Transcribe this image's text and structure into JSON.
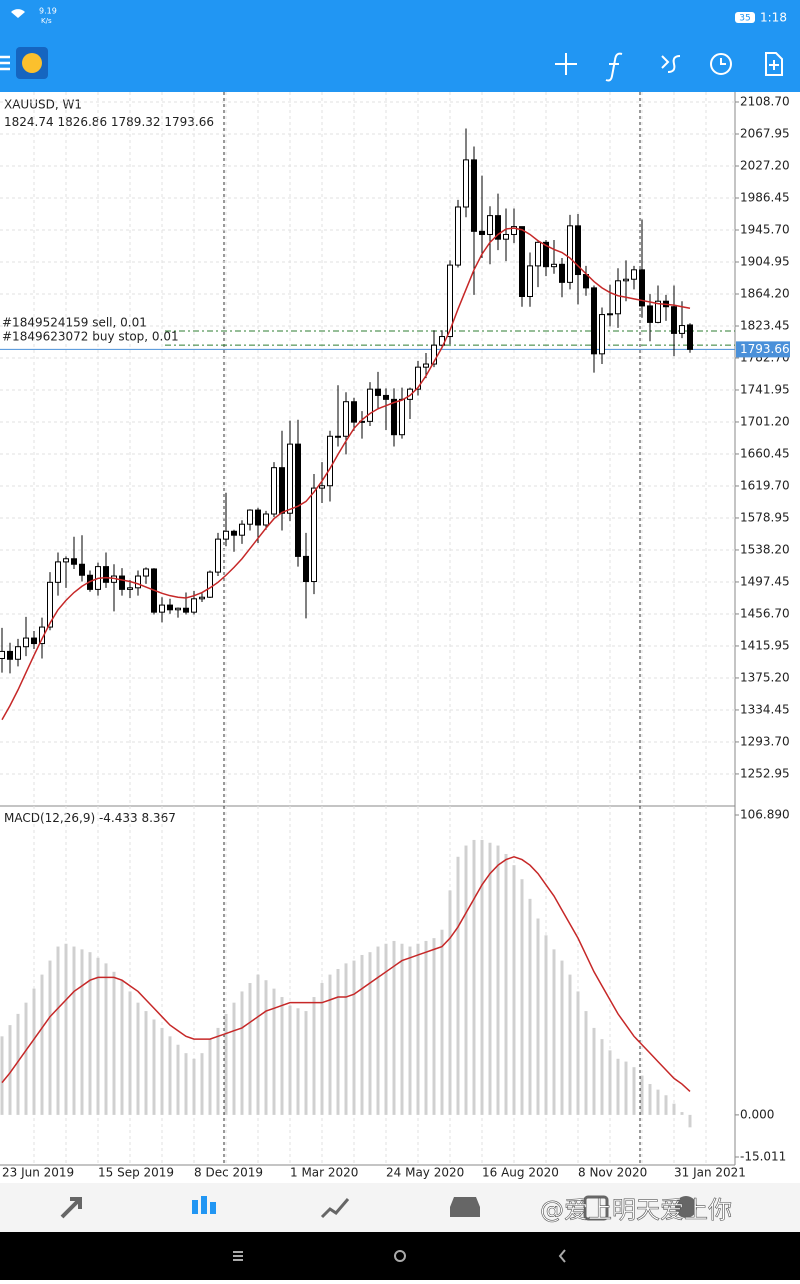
{
  "status_bar": {
    "speed": "9.19",
    "speed_unit": "K/s",
    "battery": "35",
    "time": "1:18"
  },
  "chart_data": [
    {
      "type": "candlestick",
      "title": "XAUUSD, W1",
      "ylim": [
        1213.4,
        2118.9
      ],
      "yticks": [
        {
          "value": 2108.7,
          "label": "2108.70"
        },
        2067.95,
        {
          "value": 2027.2,
          "label": "2027.20"
        },
        1986.45,
        {
          "value": 1945.7,
          "label": "1945.70"
        },
        1904.95,
        {
          "value": 1864.2,
          "label": "1864.20"
        },
        1823.45,
        {
          "value": 1782.7,
          "label": "1782.70"
        },
        1741.95,
        {
          "value": 1701.2,
          "label": "1701.20"
        },
        1660.45,
        {
          "value": 1619.7,
          "label": "1619.70"
        },
        1578.95,
        {
          "value": 1538.2,
          "label": "1538.20"
        },
        1497.45,
        {
          "value": 1456.7,
          "label": "1456.70"
        },
        1415.95,
        {
          "value": 1375.2,
          "label": "1375.20"
        },
        1334.45,
        {
          "value": 1293.7,
          "label": "1293.70"
        },
        1252.95
      ],
      "grid": true,
      "up_color": "#ffffff",
      "down_color": "#000000",
      "candles": [
        [
          1400,
          1439,
          1382,
          1409
        ],
        [
          1409,
          1420,
          1381,
          1399
        ],
        [
          1399,
          1425,
          1390,
          1415
        ],
        [
          1415,
          1453,
          1403,
          1426
        ],
        [
          1426,
          1435,
          1412,
          1419
        ],
        [
          1419,
          1452,
          1400,
          1440
        ],
        [
          1440,
          1510,
          1436,
          1497
        ],
        [
          1497,
          1535,
          1480,
          1523
        ],
        [
          1523,
          1530,
          1490,
          1527
        ],
        [
          1527,
          1555,
          1514,
          1520
        ],
        [
          1520,
          1557,
          1498,
          1506
        ],
        [
          1506,
          1512,
          1485,
          1488
        ],
        [
          1488,
          1522,
          1480,
          1517
        ],
        [
          1517,
          1535,
          1490,
          1497
        ],
        [
          1497,
          1520,
          1460,
          1505
        ],
        [
          1505,
          1515,
          1480,
          1488
        ],
        [
          1488,
          1500,
          1477,
          1490
        ],
        [
          1490,
          1512,
          1480,
          1505
        ],
        [
          1505,
          1516,
          1495,
          1514
        ],
        [
          1514,
          1515,
          1456,
          1459
        ],
        [
          1459,
          1478,
          1446,
          1468
        ],
        [
          1468,
          1476,
          1457,
          1462
        ],
        [
          1462,
          1465,
          1452,
          1464
        ],
        [
          1464,
          1484,
          1456,
          1459
        ],
        [
          1459,
          1486,
          1456,
          1476
        ],
        [
          1476,
          1483,
          1472,
          1478
        ],
        [
          1478,
          1512,
          1477,
          1510
        ],
        [
          1510,
          1560,
          1505,
          1552
        ],
        [
          1552,
          1611,
          1543,
          1562
        ],
        [
          1562,
          1564,
          1536,
          1557
        ],
        [
          1557,
          1576,
          1546,
          1571
        ],
        [
          1571,
          1590,
          1563,
          1589
        ],
        [
          1589,
          1592,
          1547,
          1570
        ],
        [
          1570,
          1588,
          1564,
          1584
        ],
        [
          1584,
          1650,
          1580,
          1643
        ],
        [
          1643,
          1690,
          1563,
          1585
        ],
        [
          1585,
          1703,
          1575,
          1673
        ],
        [
          1673,
          1704,
          1517,
          1530
        ],
        [
          1530,
          1560,
          1451,
          1498
        ],
        [
          1498,
          1635,
          1482,
          1617
        ],
        [
          1617,
          1650,
          1598,
          1620
        ],
        [
          1620,
          1690,
          1600,
          1683
        ],
        [
          1683,
          1748,
          1670,
          1683
        ],
        [
          1683,
          1739,
          1660,
          1727
        ],
        [
          1727,
          1732,
          1690,
          1701
        ],
        [
          1701,
          1715,
          1680,
          1702
        ],
        [
          1702,
          1752,
          1696,
          1743
        ],
        [
          1743,
          1765,
          1718,
          1735
        ],
        [
          1735,
          1744,
          1691,
          1730
        ],
        [
          1730,
          1744,
          1670,
          1685
        ],
        [
          1685,
          1745,
          1680,
          1730
        ],
        [
          1730,
          1745,
          1705,
          1743
        ],
        [
          1743,
          1779,
          1735,
          1771
        ],
        [
          1771,
          1789,
          1757,
          1775
        ],
        [
          1775,
          1818,
          1771,
          1799
        ],
        [
          1799,
          1818,
          1795,
          1810
        ],
        [
          1810,
          1907,
          1800,
          1901
        ],
        [
          1901,
          1984,
          1898,
          1975
        ],
        [
          1975,
          2075,
          1962,
          2035
        ],
        [
          2035,
          2052,
          1863,
          1944
        ],
        [
          1944,
          2015,
          1910,
          1940
        ],
        [
          1940,
          1976,
          1902,
          1964
        ],
        [
          1964,
          1992,
          1920,
          1934
        ],
        [
          1934,
          1973,
          1906,
          1940
        ],
        [
          1940,
          1973,
          1929,
          1950
        ],
        [
          1950,
          1950,
          1848,
          1861
        ],
        [
          1861,
          1917,
          1848,
          1900
        ],
        [
          1900,
          1933,
          1873,
          1930
        ],
        [
          1930,
          1933,
          1887,
          1899
        ],
        [
          1899,
          1933,
          1890,
          1902
        ],
        [
          1902,
          1910,
          1860,
          1879
        ],
        [
          1879,
          1965,
          1870,
          1951
        ],
        [
          1951,
          1966,
          1851,
          1889
        ],
        [
          1889,
          1900,
          1862,
          1872
        ],
        [
          1872,
          1875,
          1764,
          1788
        ],
        [
          1788,
          1847,
          1775,
          1838
        ],
        [
          1838,
          1876,
          1823,
          1839
        ],
        [
          1839,
          1897,
          1821,
          1881
        ],
        [
          1881,
          1907,
          1855,
          1883
        ],
        [
          1883,
          1900,
          1870,
          1895
        ],
        [
          1895,
          1959,
          1834,
          1849
        ],
        [
          1849,
          1864,
          1804,
          1828
        ],
        [
          1828,
          1875,
          1827,
          1855
        ],
        [
          1855,
          1863,
          1830,
          1848
        ],
        [
          1848,
          1875,
          1785,
          1814
        ],
        [
          1814,
          1855,
          1808,
          1824
        ],
        [
          1824.74,
          1826.86,
          1789.32,
          1793.66
        ]
      ],
      "ma": {
        "color": "#c62828",
        "values": [
          1322,
          1340,
          1360,
          1382,
          1404,
          1425,
          1445,
          1462,
          1474,
          1484,
          1492,
          1498,
          1502,
          1503,
          1502,
          1500,
          1498,
          1495,
          1491,
          1487,
          1483,
          1480,
          1478,
          1477,
          1480,
          1484,
          1490,
          1497,
          1506,
          1516,
          1527,
          1540,
          1553,
          1566,
          1578,
          1586,
          1590,
          1594,
          1600,
          1612,
          1626,
          1642,
          1660,
          1677,
          1693,
          1704,
          1712,
          1718,
          1722,
          1726,
          1729,
          1735,
          1745,
          1760,
          1778,
          1796,
          1818,
          1845,
          1870,
          1895,
          1915,
          1930,
          1940,
          1947,
          1948,
          1946,
          1940,
          1932,
          1926,
          1921,
          1917,
          1910,
          1900,
          1890,
          1880,
          1872,
          1866,
          1862,
          1860,
          1858,
          1856,
          1854,
          1852,
          1851,
          1850,
          1848,
          1846
        ]
      },
      "orders": [
        {
          "label": "#1849524159 sell, 0.01",
          "price": 1817,
          "color": "#2e7d32"
        },
        {
          "label": "#1849623072 buy stop, 0.01",
          "price": 1799,
          "color": "#2e7d32"
        }
      ],
      "price_line_color": "#4a90d9"
    },
    {
      "type": "macd",
      "title": "MACD(12,26,9)",
      "ylim": [
        -17.86,
        109.74
      ],
      "yticks": [
        {
          "value": 106.89,
          "label": "106.890"
        },
        {
          "value": 0,
          "label": "0.000"
        },
        -15.011
      ],
      "categories": [
        "23 Jun 2019",
        null,
        null,
        null,
        null,
        null,
        null,
        null,
        null,
        null,
        null,
        null,
        "15 Sep 2019",
        null,
        null,
        null,
        null,
        null,
        null,
        null,
        null,
        null,
        null,
        null,
        "8 Dec 2019",
        null,
        null,
        null,
        null,
        null,
        null,
        null,
        null,
        null,
        null,
        null,
        "1 Mar 2020",
        null,
        null,
        null,
        null,
        null,
        null,
        null,
        null,
        null,
        null,
        null,
        "24 May 2020",
        null,
        null,
        null,
        null,
        null,
        null,
        null,
        null,
        null,
        null,
        null,
        "16 Aug 2020",
        null,
        null,
        null,
        null,
        null,
        null,
        null,
        null,
        null,
        null,
        null,
        "8 Nov 2020",
        null,
        null,
        null,
        null,
        null,
        null,
        null,
        null,
        null,
        null,
        null,
        "31 Jan 2021",
        null,
        null
      ],
      "macd": {
        "color": "#d0d0d0",
        "values": [
          28,
          32,
          36,
          40,
          45,
          50,
          55,
          60,
          61,
          60,
          59,
          58,
          56,
          54,
          51,
          48,
          44,
          40,
          37,
          34,
          31,
          28,
          25,
          22,
          20,
          22,
          27,
          31,
          36,
          40,
          44,
          47,
          50,
          48,
          45,
          42,
          39,
          38,
          37,
          42,
          47,
          50,
          52,
          54,
          55,
          57,
          58,
          60,
          61,
          62,
          61,
          60,
          61,
          62,
          63,
          66,
          80,
          92,
          96,
          98,
          98,
          97,
          96,
          93,
          89,
          84,
          77,
          70,
          64,
          59,
          55,
          50,
          44,
          37,
          31,
          27,
          23,
          20,
          19,
          17,
          14,
          11,
          9,
          7,
          4,
          1,
          -4.433
        ]
      },
      "signal": {
        "color": "#c62828",
        "values": [
          11.5,
          15,
          19,
          23,
          27,
          31,
          35,
          38,
          41,
          44,
          46,
          48,
          49,
          49,
          49,
          48,
          46,
          44,
          41,
          38,
          35,
          32,
          30,
          28,
          27,
          27,
          27,
          28,
          29,
          30,
          31,
          33,
          35,
          37,
          38,
          39,
          40,
          40,
          40,
          40,
          40,
          41,
          42,
          42,
          43,
          45,
          47,
          49,
          51,
          53,
          55,
          56,
          57,
          58,
          59,
          60,
          63,
          67,
          72,
          77,
          82,
          86,
          89,
          91,
          92,
          91,
          89,
          86,
          82,
          78,
          73,
          68,
          63,
          57,
          51,
          46,
          41,
          36,
          32,
          28,
          25,
          22,
          19,
          16,
          13,
          11,
          8.367
        ]
      }
    }
  ],
  "watermark": "@爱上明天爱上你"
}
